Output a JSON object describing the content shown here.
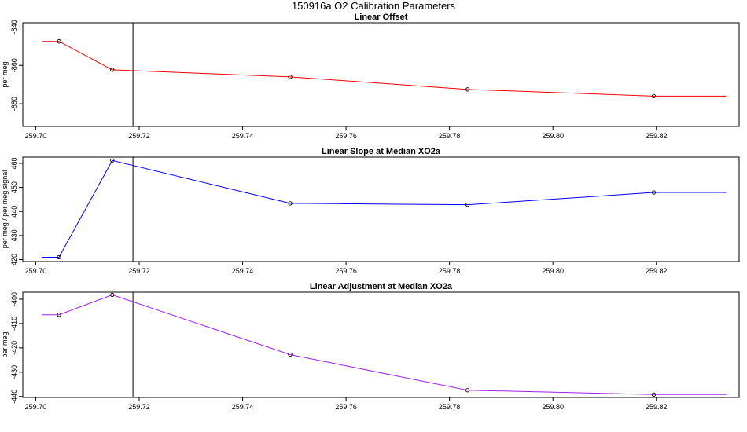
{
  "page": {
    "title": "150916a   O2 Calibration Parameters"
  },
  "chart_data": [
    {
      "type": "line",
      "title": "Linear Offset",
      "xlabel": "",
      "ylabel": "per meg",
      "color": "#ff0000",
      "xlim": [
        259.6975,
        259.836
      ],
      "ylim": [
        -891.8,
        -837.8
      ],
      "x_ticks": [
        "259.70",
        "259.72",
        "259.74",
        "259.76",
        "259.78",
        "259.80",
        "259.82"
      ],
      "x_tick_values": [
        259.7,
        259.72,
        259.74,
        259.76,
        259.78,
        259.8,
        259.82
      ],
      "y_ticks": [
        "-840",
        "-860",
        "-880"
      ],
      "y_tick_values": [
        -840,
        -860,
        -880
      ],
      "vline": 259.7188,
      "line_x": [
        259.7012,
        259.7045,
        259.7148,
        259.7492,
        259.7835,
        259.8195,
        259.8335
      ],
      "line_y": [
        -847.5,
        -847.5,
        -862.3,
        -866.0,
        -872.5,
        -876.0,
        -876.0
      ],
      "points_x": [
        259.7045,
        259.7148,
        259.7492,
        259.7835,
        259.8195
      ],
      "points_y": [
        -847.5,
        -862.3,
        -866.0,
        -872.5,
        -876.0
      ]
    },
    {
      "type": "line",
      "title": "Linear Slope at Median XO2a",
      "xlabel": "",
      "ylabel": "per meg / per meg signal",
      "color": "#0000ff",
      "xlim": [
        259.6975,
        259.836
      ],
      "ylim": [
        419.2,
        462.6
      ],
      "x_ticks": [
        "259.70",
        "259.72",
        "259.74",
        "259.76",
        "259.78",
        "259.80",
        "259.82"
      ],
      "x_tick_values": [
        259.7,
        259.72,
        259.74,
        259.76,
        259.78,
        259.8,
        259.82
      ],
      "y_ticks": [
        "420",
        "430",
        "440",
        "450",
        "460"
      ],
      "y_tick_values": [
        420,
        430,
        440,
        450,
        460
      ],
      "vline": 259.7188,
      "line_x": [
        259.7012,
        259.7045,
        259.7148,
        259.7492,
        259.7835,
        259.8195,
        259.8335
      ],
      "line_y": [
        421.0,
        421.0,
        461.2,
        443.4,
        442.8,
        447.9,
        447.9
      ],
      "points_x": [
        259.7045,
        259.7148,
        259.7492,
        259.7835,
        259.8195
      ],
      "points_y": [
        421.0,
        461.2,
        443.4,
        442.8,
        447.9
      ]
    },
    {
      "type": "line",
      "title": "Linear Adjustment at Median XO2a",
      "xlabel": "",
      "ylabel": "per meg",
      "color": "#a020f0",
      "xlim": [
        259.6975,
        259.836
      ],
      "ylim": [
        -440.4,
        -397.1
      ],
      "x_ticks": [
        "259.70",
        "259.72",
        "259.74",
        "259.76",
        "259.78",
        "259.80",
        "259.82"
      ],
      "x_tick_values": [
        259.7,
        259.72,
        259.74,
        259.76,
        259.78,
        259.8,
        259.82
      ],
      "y_ticks": [
        "-400",
        "-410",
        "-420",
        "-430",
        "-440"
      ],
      "y_tick_values": [
        -400,
        -410,
        -420,
        -430,
        -440
      ],
      "vline": 259.7188,
      "line_x": [
        259.7012,
        259.7045,
        259.7148,
        259.7492,
        259.7835,
        259.8195,
        259.8335
      ],
      "line_y": [
        -406.4,
        -406.4,
        -398.2,
        -422.8,
        -437.4,
        -439.2,
        -439.2
      ],
      "points_x": [
        259.7045,
        259.7148,
        259.7492,
        259.7835,
        259.8195
      ],
      "points_y": [
        -406.4,
        -398.2,
        -422.8,
        -437.4,
        -439.2
      ]
    }
  ]
}
